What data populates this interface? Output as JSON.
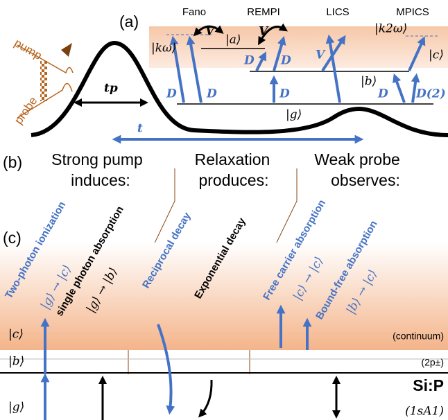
{
  "panel_a": {
    "label": "(a)",
    "schemes": [
      "Fano",
      "REMPI",
      "LICS",
      "MPICS"
    ],
    "pump": "pump",
    "probe": "probe",
    "tp": "tp",
    "t": "t",
    "kets": [
      "|kω⟩",
      "|a⟩",
      "|k2ω⟩",
      "|c⟩",
      "|b⟩",
      "|g⟩"
    ],
    "couplings": [
      "V",
      "V",
      "V"
    ],
    "dipoles": [
      "D",
      "D",
      "D",
      "D",
      "D",
      "D",
      "D(2)"
    ]
  },
  "panel_b": {
    "label": "(b)",
    "headers": [
      [
        "Strong pump",
        "induces:"
      ],
      [
        "Relaxation",
        "produces:"
      ],
      [
        "Weak probe",
        "observes:"
      ]
    ]
  },
  "panel_c": {
    "label": "(c)",
    "processes": [
      {
        "name": "Two-photon ionization",
        "transition": "|g⟩ → |c⟩"
      },
      {
        "name": "single photon absorption",
        "transition": "|g⟩ → |b⟩"
      },
      {
        "name": "Reciprocal decay"
      },
      {
        "name": "Exponential decay"
      },
      {
        "name": "Free carrier absorption",
        "transition": "|c⟩ → |c⟩"
      },
      {
        "name": "Bound-free absorption",
        "transition": "|b⟩ → |c⟩"
      }
    ],
    "levels": [
      {
        "ket": "|c⟩",
        "note": "(continuum)"
      },
      {
        "ket": "|b⟩",
        "note": "(2p±)"
      },
      {
        "ket": "|g⟩",
        "note": "(1sA1)"
      }
    ],
    "material": "Si:P"
  }
}
